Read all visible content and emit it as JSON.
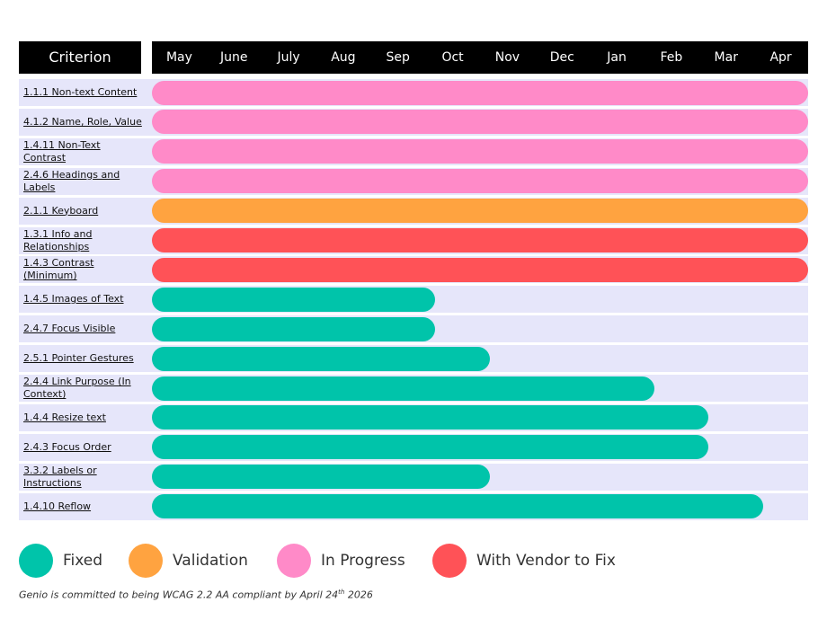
{
  "chart_data": {
    "type": "gantt",
    "header": "Criterion",
    "categories": [
      "May",
      "June",
      "July",
      "Aug",
      "Sep",
      "Oct",
      "Nov",
      "Dec",
      "Jan",
      "Feb",
      "Mar",
      "Apr"
    ],
    "xlim": [
      0,
      12
    ],
    "rows": [
      {
        "label": "1.1.1 Non-text Content",
        "value": 12,
        "color": "#ff8ac8"
      },
      {
        "label": "4.1.2 Name, Role, Value",
        "value": 12,
        "color": "#ff8ac8"
      },
      {
        "label": "1.4.11 Non-Text Contrast",
        "value": 12,
        "color": "#ff8ac8"
      },
      {
        "label": "2.4.6 Headings and Labels",
        "value": 12,
        "color": "#ff8ac8"
      },
      {
        "label": "2.1.1 Keyboard",
        "value": 12,
        "color": "#ffa340"
      },
      {
        "label": "1.3.1 Info and Relationships",
        "value": 12,
        "color": "#ff5257"
      },
      {
        "label": "1.4.3 Contrast (Minimum)",
        "value": 12,
        "color": "#ff5257"
      },
      {
        "label": "1.4.5 Images of Text",
        "value": 5,
        "color": "#00c4aa"
      },
      {
        "label": "2.4.7 Focus Visible",
        "value": 5,
        "color": "#00c4aa"
      },
      {
        "label": "2.5.1 Pointer Gestures",
        "value": 6,
        "color": "#00c4aa"
      },
      {
        "label": "2.4.4 Link Purpose (In Context)",
        "value": 9,
        "color": "#00c4aa"
      },
      {
        "label": "1.4.4 Resize text",
        "value": 10,
        "color": "#00c4aa"
      },
      {
        "label": "2.4.3 Focus Order",
        "value": 10,
        "color": "#00c4aa"
      },
      {
        "label": "3.3.2 Labels or Instructions",
        "value": 6,
        "color": "#00c4aa"
      },
      {
        "label": "1.4.10 Reflow",
        "value": 11,
        "color": "#00c4aa"
      }
    ],
    "legend": [
      {
        "name": "Fixed",
        "color": "#00c4aa"
      },
      {
        "name": "Validation",
        "color": "#ffa340"
      },
      {
        "name": "In Progress",
        "color": "#ff8ac8"
      },
      {
        "name": "With Vendor to Fix",
        "color": "#ff5257"
      }
    ],
    "footnote": [
      "Genio is committed to being WCAG 2.2 AA compliant by April 24",
      "th",
      " 2026"
    ]
  }
}
